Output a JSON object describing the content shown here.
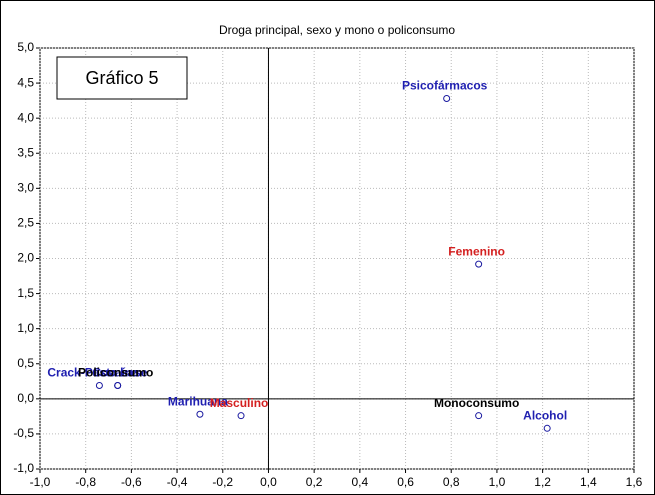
{
  "chart_data": {
    "type": "scatter",
    "title": "Droga principal, sexo y mono o policonsumo",
    "annotation": "Gráfico 5",
    "marker_color": "#1a1aa0",
    "grid": true,
    "xlim": [
      -1.0,
      1.6
    ],
    "ylim": [
      -1.0,
      5.0
    ],
    "xticks": [
      {
        "value": -1.0,
        "label": "-1,0"
      },
      {
        "value": -0.8,
        "label": "-0,8"
      },
      {
        "value": -0.6,
        "label": "-0,6"
      },
      {
        "value": -0.4,
        "label": "-0,4"
      },
      {
        "value": -0.2,
        "label": "-0,2"
      },
      {
        "value": 0.0,
        "label": "0,0"
      },
      {
        "value": 0.2,
        "label": "0,2"
      },
      {
        "value": 0.4,
        "label": "0,4"
      },
      {
        "value": 0.6,
        "label": "0,6"
      },
      {
        "value": 0.8,
        "label": "0,8"
      },
      {
        "value": 1.0,
        "label": "1,0"
      },
      {
        "value": 1.2,
        "label": "1,2"
      },
      {
        "value": 1.4,
        "label": "1,4"
      },
      {
        "value": 1.6,
        "label": "1,6"
      }
    ],
    "yticks": [
      {
        "value": -1.0,
        "label": "-1,0"
      },
      {
        "value": -0.5,
        "label": "-0,5"
      },
      {
        "value": 0.0,
        "label": "0,0"
      },
      {
        "value": 0.5,
        "label": "0,5"
      },
      {
        "value": 1.0,
        "label": "1,0"
      },
      {
        "value": 1.5,
        "label": "1,5"
      },
      {
        "value": 2.0,
        "label": "2,0"
      },
      {
        "value": 2.5,
        "label": "2,5"
      },
      {
        "value": 3.0,
        "label": "3,0"
      },
      {
        "value": 3.5,
        "label": "3,5"
      },
      {
        "value": 4.0,
        "label": "4,0"
      },
      {
        "value": 4.5,
        "label": "4,5"
      },
      {
        "value": 5.0,
        "label": "5,0"
      }
    ],
    "points": [
      {
        "label": "Psicofármacos",
        "x": 0.78,
        "y": 4.28,
        "color": "#1f1fb0"
      },
      {
        "label": "Femenino",
        "x": 0.92,
        "y": 1.92,
        "color": "#d42020"
      },
      {
        "label": "Crack-Pasta base",
        "x": -0.74,
        "y": 0.19,
        "color": "#1f1fb0"
      },
      {
        "label": "Cocaína",
        "x": -0.66,
        "y": 0.19,
        "color": "#1f1fb0"
      },
      {
        "label": "Policonsumo",
        "x": -0.66,
        "y": 0.19,
        "color": "#000000"
      },
      {
        "label": "Marihuana",
        "x": -0.3,
        "y": -0.22,
        "color": "#1f1fb0"
      },
      {
        "label": "Masculino",
        "x": -0.12,
        "y": -0.24,
        "color": "#d42020"
      },
      {
        "label": "Monoconsumo",
        "x": 0.92,
        "y": -0.24,
        "color": "#000000"
      },
      {
        "label": "Alcohol",
        "x": 1.22,
        "y": -0.42,
        "color": "#1f1fb0"
      }
    ]
  }
}
